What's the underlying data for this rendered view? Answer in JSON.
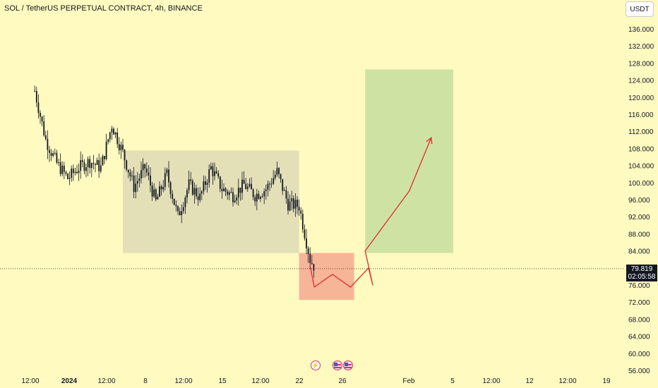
{
  "header": {
    "symbol_title": "SOL / TetherUS PERPETUAL CONTRACT, 4h, BINANCE",
    "currency_button": "USDT"
  },
  "price_marker": {
    "price": "79.819",
    "countdown": "02:05:58"
  },
  "events": [
    {
      "icon": "flash-icon"
    },
    {
      "icon": "us-flag-icon"
    },
    {
      "icon": "us-flag-icon"
    }
  ],
  "colors": {
    "background": "#fffac0",
    "candle": "#131722",
    "range_box": "#d9d6b4",
    "entry_zone": "#f6ad93",
    "target_zone": "#c9e0a0",
    "projection": "#e02b2b",
    "price_tag": "#131722"
  },
  "chart_data": {
    "type": "candlestick",
    "title": "SOL / TetherUS PERPETUAL CONTRACT, 4h, BINANCE",
    "x_tick_labels": [
      "12:00",
      "2024",
      "12:00",
      "8",
      "12:00",
      "15",
      "12:00",
      "22",
      "26",
      "Feb",
      "5",
      "12:00",
      "12",
      "12:00",
      "19"
    ],
    "y_tick_labels": [
      "136.000",
      "132.000",
      "128.000",
      "124.000",
      "120.000",
      "116.000",
      "112.000",
      "108.000",
      "104.000",
      "100.000",
      "96.000",
      "92.000",
      "88.000",
      "84.000",
      "76.000",
      "72.000",
      "68.000",
      "64.000",
      "60.000",
      "56.000"
    ],
    "ylim": [
      55.5,
      139.5
    ],
    "last_price": 79.819,
    "grid": false,
    "approx_close_path": [
      {
        "date": "2023-12-29",
        "close": 121.5
      },
      {
        "date": "2023-12-30",
        "close": 110
      },
      {
        "date": "2023-12-31",
        "close": 104.5
      },
      {
        "date": "2024-01-01",
        "close": 101
      },
      {
        "date": "2024-01-02",
        "close": 103.5
      },
      {
        "date": "2024-01-03",
        "close": 105
      },
      {
        "date": "2024-01-04",
        "close": 103.5
      },
      {
        "date": "2024-01-05",
        "close": 113.5
      },
      {
        "date": "2024-01-06",
        "close": 107
      },
      {
        "date": "2024-01-07",
        "close": 99
      },
      {
        "date": "2024-01-08",
        "close": 103.5
      },
      {
        "date": "2024-01-09",
        "close": 95.5
      },
      {
        "date": "2024-01-10",
        "close": 102
      },
      {
        "date": "2024-01-11",
        "close": 92
      },
      {
        "date": "2024-01-12",
        "close": 99.5
      },
      {
        "date": "2024-01-13",
        "close": 96.5
      },
      {
        "date": "2024-01-14",
        "close": 103.5
      },
      {
        "date": "2024-01-15",
        "close": 98.5
      },
      {
        "date": "2024-01-16",
        "close": 97
      },
      {
        "date": "2024-01-17",
        "close": 99.5
      },
      {
        "date": "2024-01-18",
        "close": 97
      },
      {
        "date": "2024-01-19",
        "close": 98.5
      },
      {
        "date": "2024-01-20",
        "close": 102.5
      },
      {
        "date": "2024-01-21",
        "close": 95
      },
      {
        "date": "2024-01-22",
        "close": 94.5
      },
      {
        "date": "2024-01-23",
        "close": 82
      },
      {
        "date": "2024-01-23T12:00",
        "close": 79.8
      }
    ],
    "annotations": [
      {
        "type": "range-box",
        "start": "2024-01-06",
        "end": "2024-01-22",
        "low": 83.5,
        "high": 107.5
      },
      {
        "type": "entry-zone",
        "start": "2024-01-22",
        "end": "2024-01-27",
        "low": 72.5,
        "high": 83.5
      },
      {
        "type": "target-zone",
        "start": "2024-01-28",
        "end": "2024-02-05",
        "low": 83.5,
        "high": 126.5
      },
      {
        "type": "projection-arrow",
        "points": [
          {
            "date": "2024-01-23",
            "price": 80.5
          },
          {
            "date": "2024-01-23",
            "price": 75.5
          },
          {
            "date": "2024-01-24",
            "price": 78.5
          },
          {
            "date": "2024-01-25",
            "price": 75.5
          },
          {
            "date": "2024-01-26",
            "price": 80
          },
          {
            "date": "2024-01-26",
            "price": 76
          },
          {
            "date": "2024-01-28",
            "price": 84
          },
          {
            "date": "2024-02-01",
            "price": 98
          },
          {
            "date": "2024-02-03",
            "price": 110.5
          }
        ]
      }
    ]
  }
}
